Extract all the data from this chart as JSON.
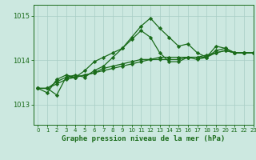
{
  "title": "Graphe pression niveau de la mer (hPa)",
  "bg_color": "#cce8e0",
  "grid_color": "#a8ccc4",
  "line_color": "#1a6b1a",
  "xlim": [
    -0.5,
    23
  ],
  "ylim": [
    1012.55,
    1015.25
  ],
  "yticks": [
    1013,
    1014,
    1015
  ],
  "xticks": [
    0,
    1,
    2,
    3,
    4,
    5,
    6,
    7,
    8,
    9,
    10,
    11,
    12,
    13,
    14,
    15,
    16,
    17,
    18,
    19,
    20,
    21,
    22,
    23
  ],
  "series1": [
    1013.37,
    1013.37,
    1013.22,
    1013.62,
    1013.67,
    1013.62,
    1013.77,
    1013.87,
    1014.07,
    1014.27,
    1014.52,
    1014.77,
    1014.95,
    1014.72,
    1014.52,
    1014.32,
    1014.37,
    1014.17,
    1014.07,
    1014.22,
    1014.27,
    1014.17,
    1014.17,
    1014.17
  ],
  "series2": [
    1013.37,
    1013.27,
    1013.57,
    1013.67,
    1013.62,
    1013.77,
    1013.97,
    1014.07,
    1014.17,
    1014.27,
    1014.47,
    1014.67,
    1014.52,
    1014.17,
    1013.97,
    1013.97,
    1014.07,
    1014.02,
    1014.07,
    1014.32,
    1014.27,
    1014.17,
    1014.17,
    1014.17
  ],
  "series3": [
    1013.37,
    1013.37,
    1013.47,
    1013.57,
    1013.62,
    1013.67,
    1013.72,
    1013.77,
    1013.82,
    1013.87,
    1013.92,
    1013.97,
    1014.02,
    1014.07,
    1014.07,
    1014.07,
    1014.07,
    1014.07,
    1014.12,
    1014.17,
    1014.22,
    1014.17,
    1014.17,
    1014.17
  ],
  "series4": [
    1013.37,
    1013.37,
    1013.52,
    1013.62,
    1013.62,
    1013.67,
    1013.72,
    1013.82,
    1013.87,
    1013.92,
    1013.97,
    1014.02,
    1014.02,
    1014.02,
    1014.02,
    1014.02,
    1014.07,
    1014.07,
    1014.07,
    1014.17,
    1014.22,
    1014.17,
    1014.17,
    1014.17
  ]
}
